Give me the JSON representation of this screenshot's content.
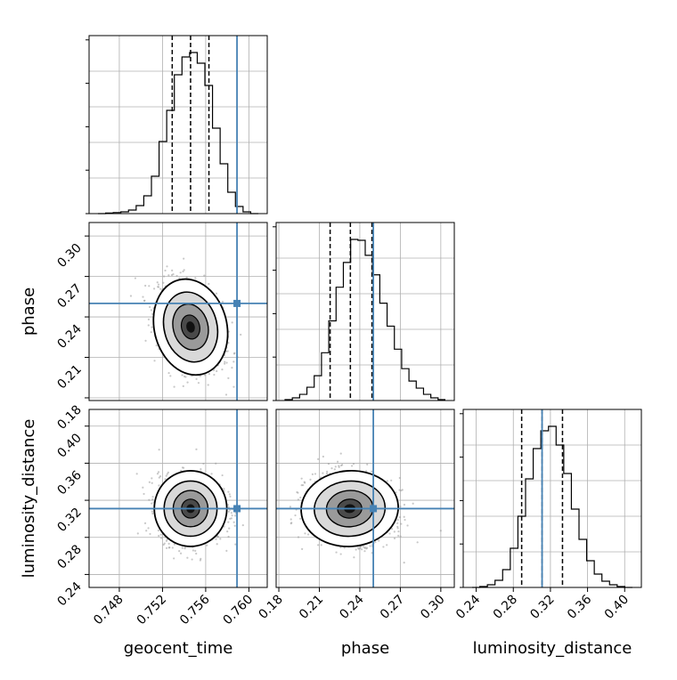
{
  "chart_data": {
    "type": "corner",
    "parameters": [
      {
        "name": "geocent_time",
        "label": "geocent_time",
        "range": [
          0.7452,
          0.7617
        ],
        "ticks": [
          "0.748",
          "0.752",
          "0.756",
          "0.760"
        ],
        "tick_values": [
          0.748,
          0.752,
          0.756,
          0.76
        ],
        "truth": 0.7589,
        "quantiles": [
          0.7529,
          0.7546,
          0.7563
        ],
        "hist_bins": [
          0,
          0.3,
          0.6,
          1.0,
          2.0,
          4.5,
          10.0,
          21.0,
          40.5,
          58.0,
          78.0,
          88.0,
          90.5,
          84.5,
          72.0,
          48.0,
          28.0,
          12.0,
          4.0,
          1.0,
          0
        ]
      },
      {
        "name": "phase",
        "label": "phase",
        "range": [
          0.178,
          0.31
        ],
        "ticks": [
          "0.18",
          "0.21",
          "0.24",
          "0.27",
          "0.30"
        ],
        "tick_values": [
          0.18,
          0.21,
          0.24,
          0.27,
          0.3
        ],
        "truth": 0.25,
        "quantiles": [
          0.218,
          0.233,
          0.249
        ],
        "hist_bins": [
          0.5,
          1.5,
          3.5,
          7.5,
          14.0,
          27.0,
          45.0,
          64.0,
          78.0,
          91.0,
          90.5,
          82.0,
          71.0,
          55.0,
          42.0,
          29.0,
          18.0,
          11.0,
          7.0,
          3.5,
          1.5,
          0.5
        ]
      },
      {
        "name": "luminosity_distance",
        "label": "luminosity_distance",
        "range": [
          0.226,
          0.418
        ],
        "ticks": [
          "0.24",
          "0.28",
          "0.32",
          "0.36",
          "0.40"
        ],
        "tick_values": [
          0.24,
          0.28,
          0.32,
          0.36,
          0.4
        ],
        "truth": 0.311,
        "quantiles": [
          0.289,
          0.311,
          0.333
        ],
        "hist_bins": [
          0,
          0.5,
          1.5,
          4.0,
          10.0,
          22.0,
          40.0,
          61.0,
          78.0,
          88.0,
          90.5,
          80.0,
          64.0,
          44.0,
          27.0,
          15.0,
          7.5,
          3.5,
          1.5,
          0.5,
          0
        ]
      }
    ],
    "pairs": [
      {
        "x": "geocent_time",
        "y": "phase",
        "mean": [
          0.7546,
          0.2325
        ],
        "sd": [
          0.0014,
          0.015
        ],
        "rho": -0.35
      },
      {
        "x": "geocent_time",
        "y": "luminosity_distance",
        "mean": [
          0.7546,
          0.311
        ],
        "sd": [
          0.0014,
          0.017
        ],
        "rho": 0.0
      },
      {
        "x": "phase",
        "y": "luminosity_distance",
        "mean": [
          0.2325,
          0.311
        ],
        "sd": [
          0.015,
          0.017
        ],
        "rho": -0.1
      }
    ],
    "truth_color": "#4682b4",
    "contour_color": "#000000",
    "grid": true
  }
}
